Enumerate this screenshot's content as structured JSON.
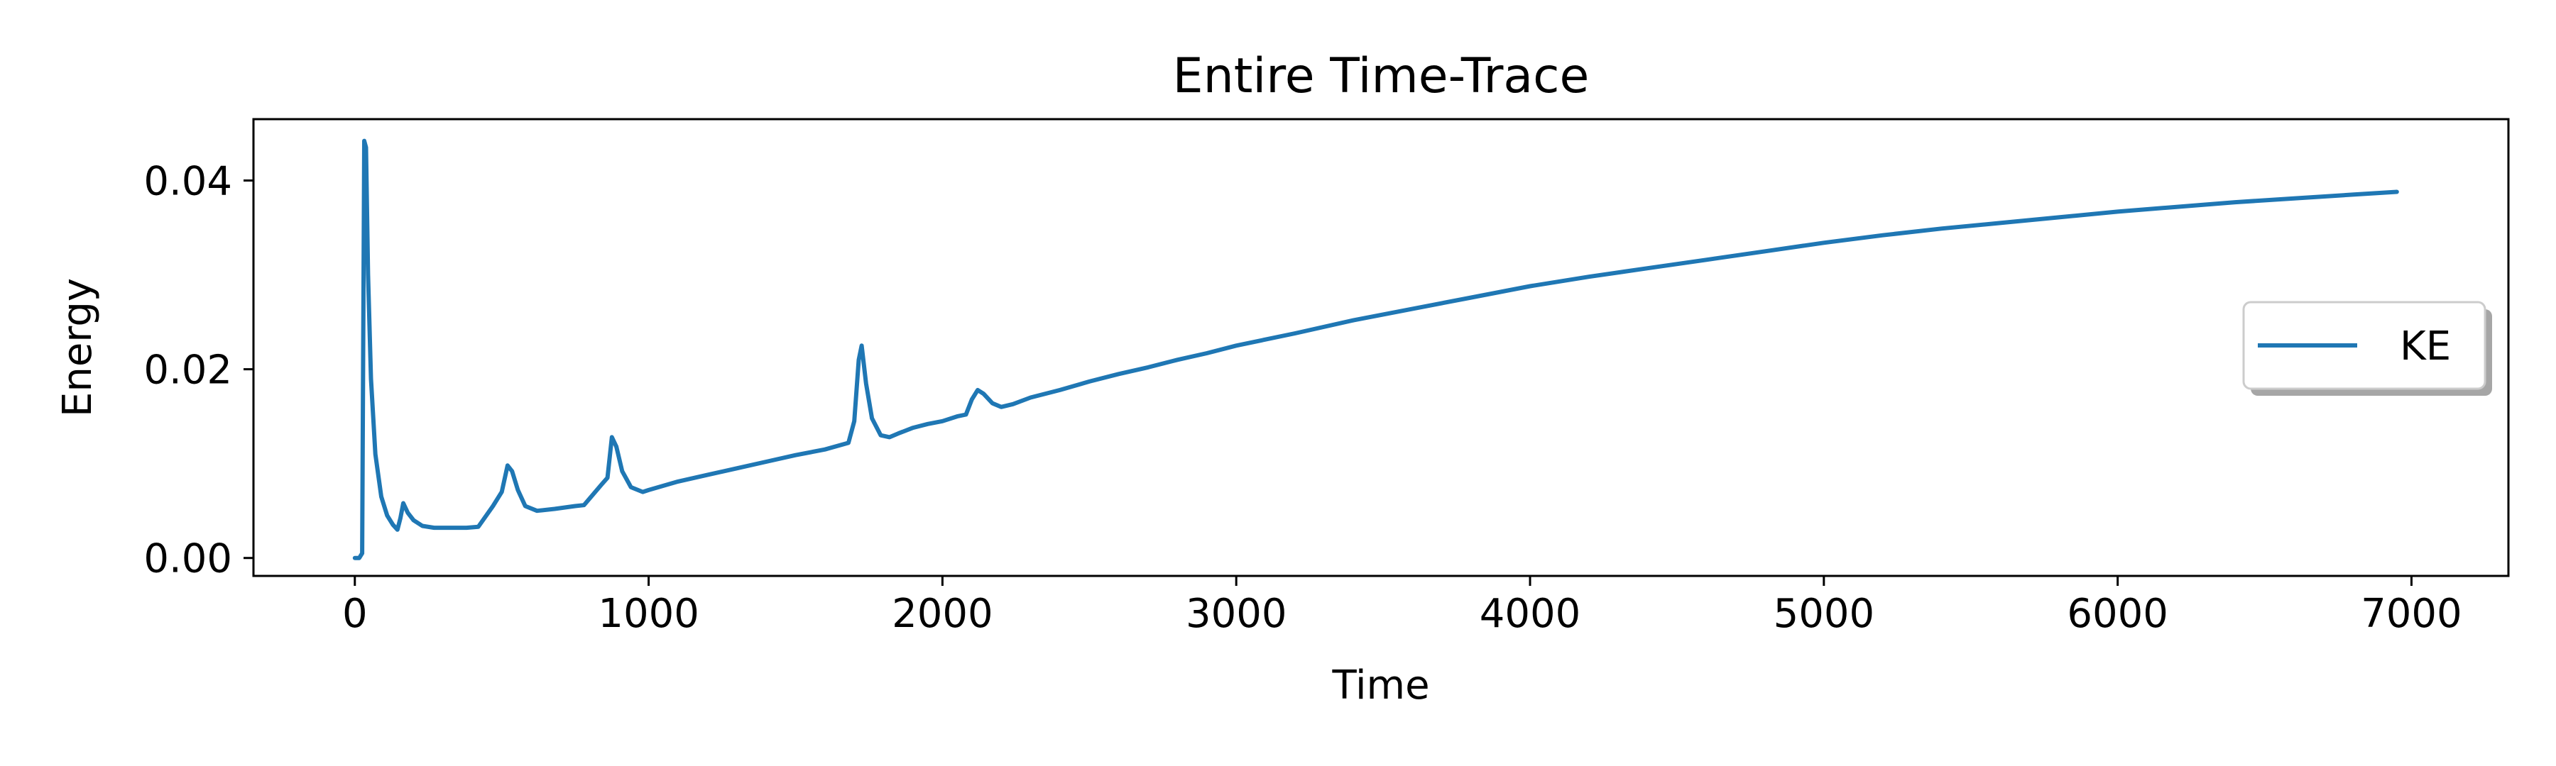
{
  "chart_data": {
    "type": "line",
    "title": "Entire Time-Trace",
    "xlabel": "Time",
    "ylabel": "Energy",
    "xlim": [
      -345,
      7330
    ],
    "ylim": [
      -0.0019,
      0.0465
    ],
    "xticks": [
      0,
      1000,
      2000,
      3000,
      4000,
      5000,
      6000,
      7000
    ],
    "xtick_labels": [
      "0",
      "1000",
      "2000",
      "3000",
      "4000",
      "5000",
      "6000",
      "7000"
    ],
    "yticks": [
      0.0,
      0.02,
      0.04
    ],
    "ytick_labels": [
      "0.00",
      "0.02",
      "0.04"
    ],
    "grid": false,
    "legend": {
      "position": "center-right",
      "entries": [
        "KE"
      ]
    },
    "colors": {
      "KE": "#1f77b4"
    },
    "series": [
      {
        "name": "KE",
        "x": [
          0,
          15,
          25,
          32,
          38,
          45,
          55,
          70,
          90,
          110,
          130,
          145,
          155,
          165,
          180,
          200,
          230,
          270,
          320,
          380,
          420,
          470,
          500,
          520,
          535,
          555,
          580,
          620,
          680,
          750,
          780,
          840,
          860,
          875,
          890,
          910,
          940,
          980,
          1000,
          1100,
          1200,
          1300,
          1400,
          1500,
          1600,
          1680,
          1700,
          1715,
          1725,
          1740,
          1760,
          1790,
          1820,
          1850,
          1900,
          1950,
          2000,
          2050,
          2080,
          2100,
          2120,
          2140,
          2170,
          2200,
          2240,
          2300,
          2400,
          2500,
          2600,
          2700,
          2800,
          2900,
          3000,
          3200,
          3400,
          3600,
          3800,
          4000,
          4200,
          4400,
          4600,
          4800,
          5000,
          5200,
          5400,
          5600,
          5800,
          6000,
          6200,
          6400,
          6600,
          6800,
          6950
        ],
        "values": [
          0.0,
          0.0,
          0.0005,
          0.0442,
          0.0435,
          0.03,
          0.019,
          0.011,
          0.0065,
          0.0045,
          0.0035,
          0.003,
          0.0042,
          0.0058,
          0.0048,
          0.004,
          0.0034,
          0.0032,
          0.0032,
          0.0032,
          0.0033,
          0.0055,
          0.007,
          0.0098,
          0.0092,
          0.0072,
          0.0055,
          0.005,
          0.0052,
          0.0055,
          0.0056,
          0.0078,
          0.0085,
          0.0128,
          0.0118,
          0.0092,
          0.0075,
          0.007,
          0.0072,
          0.0081,
          0.0088,
          0.0095,
          0.0102,
          0.0109,
          0.0115,
          0.0122,
          0.0145,
          0.021,
          0.0225,
          0.0185,
          0.0148,
          0.013,
          0.0128,
          0.0132,
          0.0138,
          0.0142,
          0.0145,
          0.015,
          0.0152,
          0.0168,
          0.0178,
          0.0174,
          0.0164,
          0.016,
          0.0163,
          0.017,
          0.0178,
          0.0187,
          0.0195,
          0.0202,
          0.021,
          0.0217,
          0.0225,
          0.0238,
          0.0252,
          0.0264,
          0.0276,
          0.0288,
          0.0298,
          0.0307,
          0.0316,
          0.0325,
          0.0334,
          0.0342,
          0.0349,
          0.0355,
          0.0361,
          0.0367,
          0.0372,
          0.0377,
          0.0381,
          0.0385,
          0.0388
        ]
      }
    ]
  }
}
